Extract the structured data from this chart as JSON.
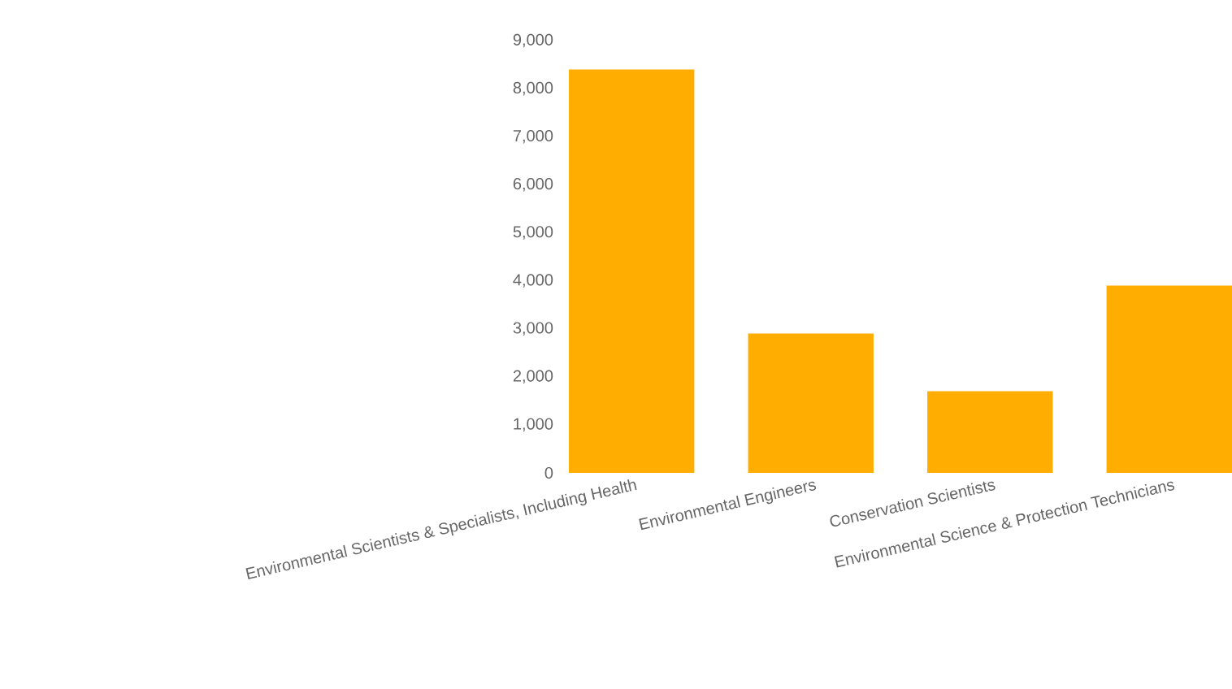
{
  "chart_data": {
    "type": "bar",
    "categories": [
      "Environmental Scientists & Specialists, Including Health",
      "Environmental Engineers",
      "Conservation Scientists",
      "Environmental Science & Protection Technicians"
    ],
    "values": [
      8400,
      2900,
      1700,
      3900
    ],
    "color": "#ffad00",
    "ylim": [
      0,
      9000
    ],
    "yticks": [
      0,
      {
        "value": 1000,
        "label": "1,000"
      },
      {
        "value": 2000,
        "label": "2,000"
      },
      {
        "value": 3000,
        "label": "3,000"
      },
      {
        "value": 4000,
        "label": "4,000"
      },
      {
        "value": 5000,
        "label": "5,000"
      },
      {
        "value": 6000,
        "label": "6,000"
      },
      {
        "value": 7000,
        "label": "7,000"
      },
      {
        "value": 8000,
        "label": "8,000"
      },
      {
        "value": 9000,
        "label": "9,000"
      }
    ],
    "grid": false
  }
}
